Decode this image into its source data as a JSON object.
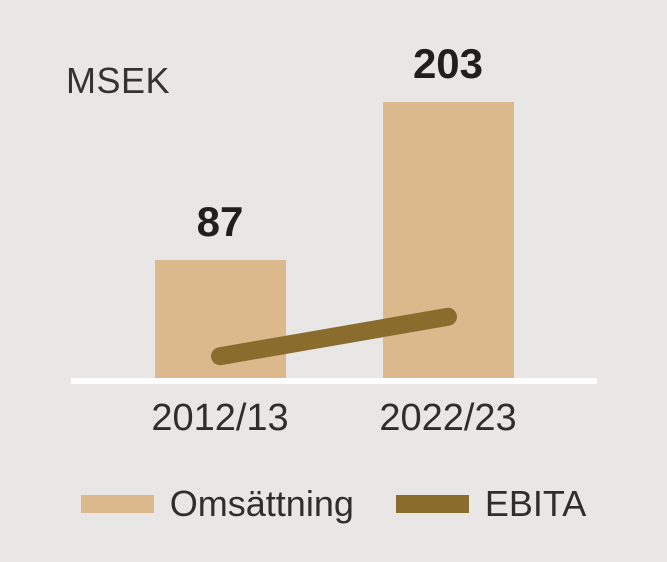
{
  "chart_data": {
    "type": "bar",
    "unit": "MSEK",
    "categories": [
      "2012/13",
      "2022/23"
    ],
    "series": [
      {
        "name": "Omsättning",
        "type": "bar",
        "values": [
          87,
          203
        ],
        "color": "#dbb98d"
      },
      {
        "name": "EBITA",
        "type": "line",
        "values": [
          16,
          45
        ],
        "values_note": "estimated from line position, not labeled in image",
        "color": "#8a6c2c"
      }
    ],
    "value_labels": [
      "87",
      "203"
    ],
    "ylim": [
      0,
      210
    ],
    "grid": false,
    "legend_position": "bottom",
    "axis_line_color": "#ffffff",
    "background_color": "#e8e7e6",
    "value_label_color": "#1f1f1f",
    "text_color": "#2e2e2e"
  }
}
